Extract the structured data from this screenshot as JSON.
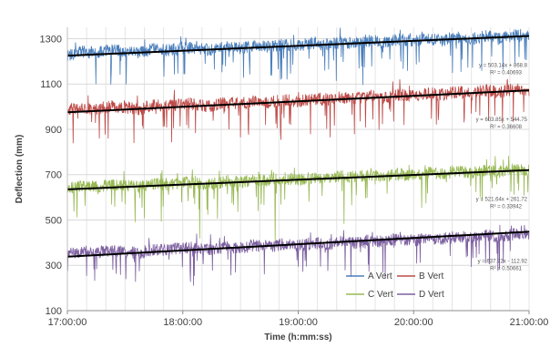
{
  "chart_data": {
    "type": "line",
    "title": "",
    "xlabel": "Time (h:mm:ss)",
    "ylabel": "Deflection (mm)",
    "x_range_hours": [
      17,
      21
    ],
    "x_ticks": [
      "17:00:00",
      "18:00:00",
      "19:00:00",
      "20:00:00",
      "21:00:00"
    ],
    "ylim": [
      100,
      1350
    ],
    "y_ticks": [
      "100",
      "300",
      "500",
      "700",
      "900",
      "1100",
      "1300"
    ],
    "grid": true,
    "legend_position": "bottom-right",
    "series": [
      {
        "name": "A Vert",
        "color": "#4a7ebb",
        "trend": {
          "start": 1225,
          "end": 1312
        },
        "profile": [
          1228,
          1242,
          1238,
          1250,
          1246,
          1236,
          1255,
          1248,
          1262,
          1256,
          1251,
          1266,
          1258,
          1270,
          1262,
          1275,
          1267,
          1281,
          1274,
          1286,
          1279,
          1291,
          1284,
          1296,
          1289,
          1300,
          1293,
          1305,
          1298,
          1310,
          1303,
          1314,
          1308
        ],
        "equation": "y = 503.14x + 868.8",
        "r2": "R² = 0.40693"
      },
      {
        "name": "B Vert",
        "color": "#be4b48",
        "trend": {
          "start": 975,
          "end": 1072
        },
        "profile": [
          985,
          995,
          990,
          1002,
          996,
          990,
          1008,
          1000,
          1015,
          1008,
          1002,
          1020,
          1012,
          1026,
          1018,
          1030,
          1022,
          1036,
          1028,
          1042,
          1034,
          1048,
          1040,
          1054,
          1046,
          1060,
          1052,
          1066,
          1058,
          1072,
          1064,
          1078,
          1070
        ],
        "equation": "y = 603.85x + 544.75",
        "r2": "R² = 0.36608"
      },
      {
        "name": "C Vert",
        "color": "#98b954",
        "trend": {
          "start": 635,
          "end": 720
        },
        "profile": [
          642,
          650,
          646,
          656,
          651,
          645,
          662,
          655,
          668,
          662,
          657,
          673,
          666,
          679,
          672,
          684,
          677,
          689,
          683,
          694,
          688,
          699,
          693,
          704,
          698,
          709,
          703,
          714,
          708,
          719,
          713,
          724,
          718
        ],
        "equation": "y = 521.64x + 261.72",
        "r2": "R² = 0.33942"
      },
      {
        "name": "D Vert",
        "color": "#7d60a0",
        "trend": {
          "start": 338,
          "end": 448
        },
        "profile": [
          350,
          360,
          356,
          366,
          361,
          354,
          372,
          365,
          378,
          372,
          367,
          383,
          376,
          389,
          382,
          394,
          387,
          399,
          393,
          405,
          398,
          410,
          404,
          416,
          410,
          421,
          415,
          427,
          421,
          433,
          426,
          438,
          432
        ],
        "equation": "y = 637.72x - 112.92",
        "r2": "R² = 0.50661"
      }
    ]
  }
}
